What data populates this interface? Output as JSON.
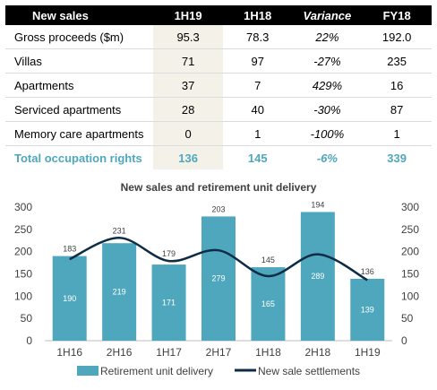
{
  "table": {
    "headers": [
      "New sales",
      "1H19",
      "1H18",
      "Variance",
      "FY18"
    ],
    "rows": [
      [
        "Gross proceeds ($m)",
        "95.3",
        "78.3",
        "22%",
        "192.0"
      ],
      [
        "Villas",
        "71",
        "97",
        "-27%",
        "235"
      ],
      [
        "Apartments",
        "37",
        "7",
        "429%",
        "16"
      ],
      [
        "Serviced apartments",
        "28",
        "40",
        "-30%",
        "87"
      ],
      [
        "Memory care apartments",
        "0",
        "1",
        "-100%",
        "1"
      ]
    ],
    "total": [
      "Total occupation rights",
      "136",
      "145",
      "-6%",
      "339"
    ]
  },
  "colors": {
    "bar": "#4fa7bd",
    "line": "#0f2c47",
    "total_text": "#4fa7bd",
    "highlight_column": "#f4f1e9",
    "header_bg": "#000000"
  },
  "chart_data": {
    "type": "bar+line",
    "title": "New sales and retirement unit delivery",
    "categories": [
      "1H16",
      "2H16",
      "1H17",
      "2H17",
      "1H18",
      "2H18",
      "1H19"
    ],
    "series": [
      {
        "name": "Retirement unit delivery",
        "type": "bar",
        "axis": "left",
        "values": [
          190,
          219,
          171,
          279,
          165,
          289,
          139
        ]
      },
      {
        "name": "New sale settlements",
        "type": "line",
        "axis": "right",
        "values": [
          183,
          231,
          179,
          203,
          145,
          194,
          136
        ]
      }
    ],
    "ylim": [
      0,
      300
    ],
    "yticks": [
      0,
      50,
      100,
      150,
      200,
      250,
      300
    ],
    "y2lim": [
      0,
      300
    ],
    "y2ticks": [
      0,
      50,
      100,
      150,
      200,
      250,
      300
    ],
    "legend_position": "bottom",
    "grid": false
  }
}
